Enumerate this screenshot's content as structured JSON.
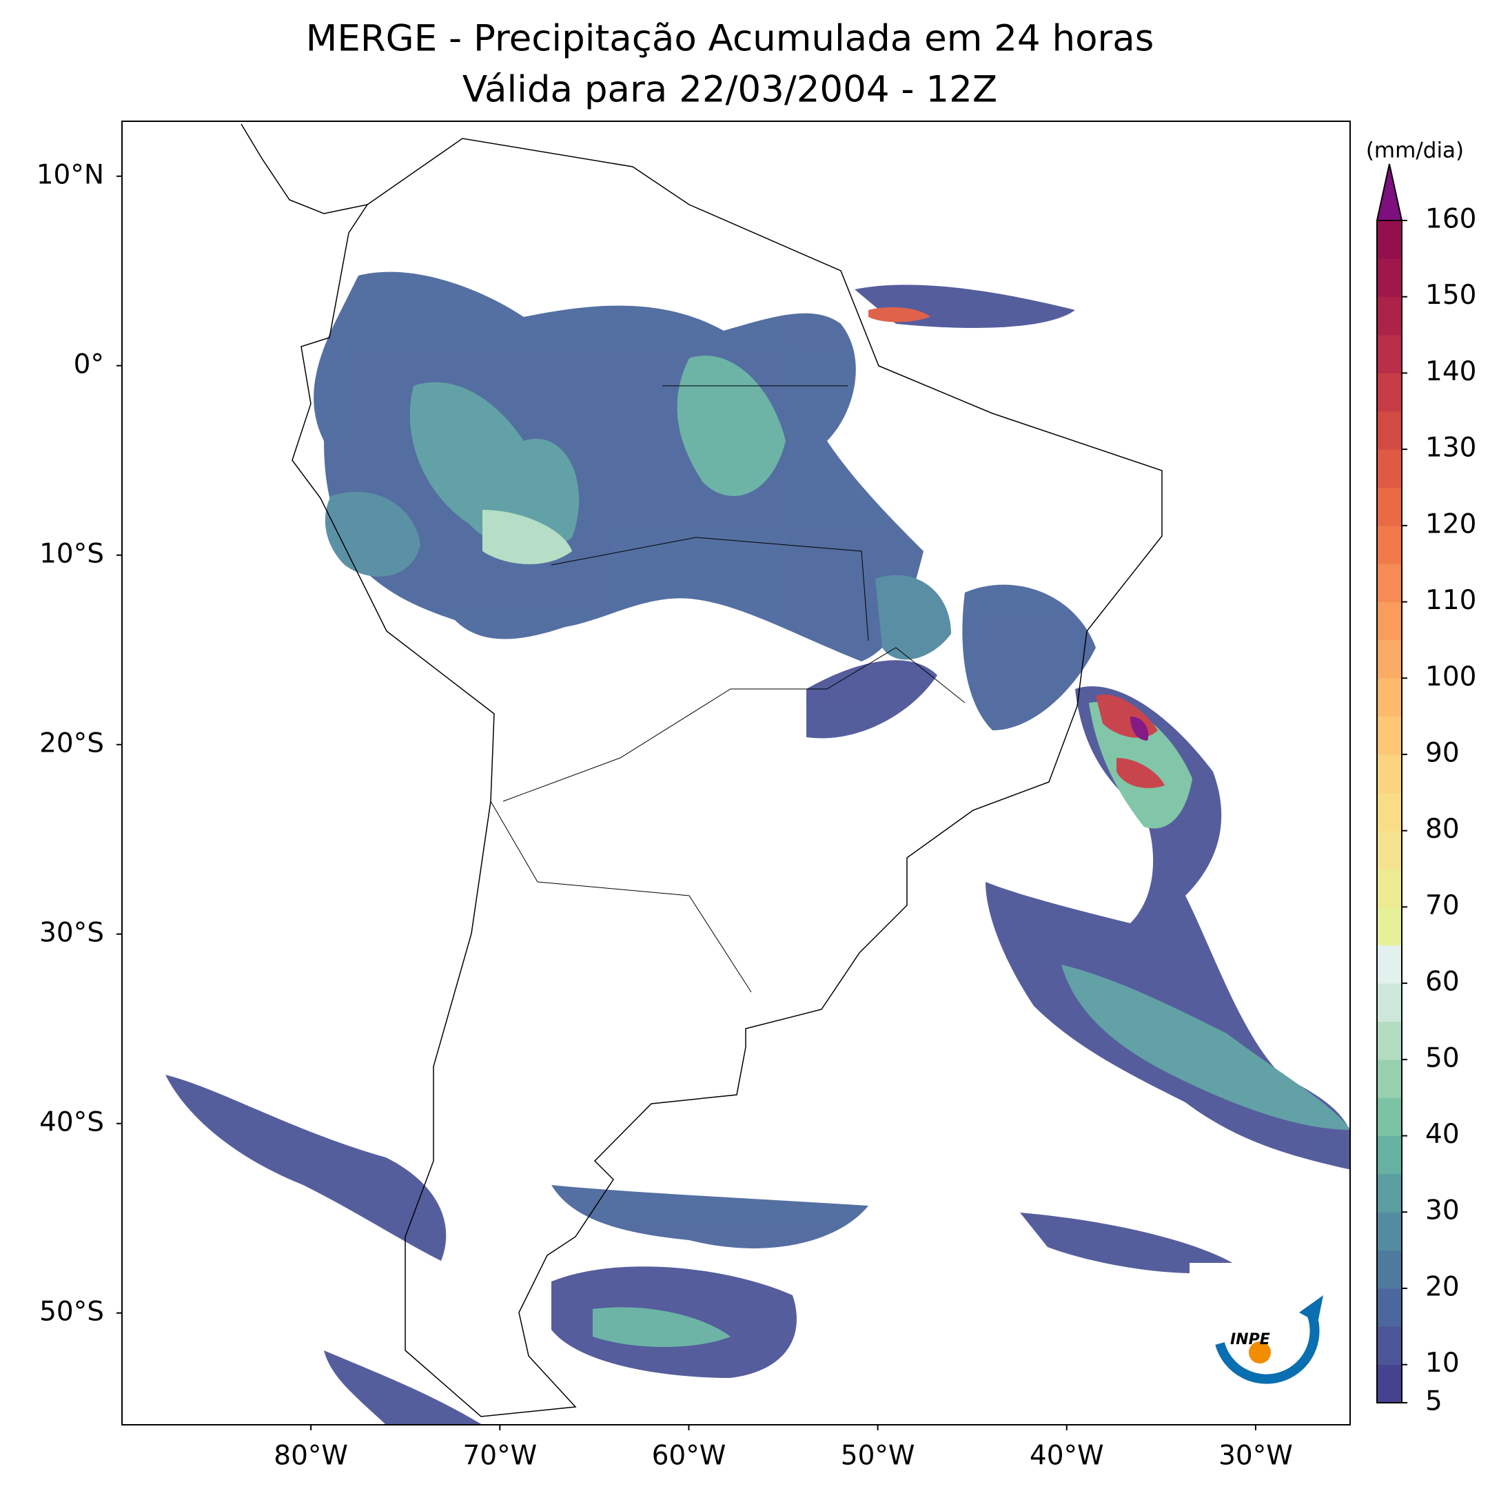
{
  "header": {
    "title": "MERGE - Precipitação Acumulada em 24 horas",
    "subtitle": "Válida para 22/03/2004 - 12Z"
  },
  "map": {
    "lon_range": [
      -90,
      -25
    ],
    "lat_range": [
      -55.9,
      12.9
    ],
    "lat_ticks": [
      {
        "value": 10,
        "label": "10°N"
      },
      {
        "value": 0,
        "label": "0°"
      },
      {
        "value": -10,
        "label": "10°S"
      },
      {
        "value": -20,
        "label": "20°S"
      },
      {
        "value": -30,
        "label": "30°S"
      },
      {
        "value": -40,
        "label": "40°S"
      },
      {
        "value": -50,
        "label": "50°S"
      }
    ],
    "lon_ticks": [
      {
        "value": -80,
        "label": "80°W"
      },
      {
        "value": -70,
        "label": "70°W"
      },
      {
        "value": -60,
        "label": "60°W"
      },
      {
        "value": -50,
        "label": "50°W"
      },
      {
        "value": -40,
        "label": "40°W"
      },
      {
        "value": -30,
        "label": "30°W"
      }
    ]
  },
  "colorbar": {
    "label": "(mm/dia)",
    "levels": [
      5,
      10,
      15,
      20,
      25,
      30,
      35,
      40,
      45,
      50,
      55,
      60,
      65,
      70,
      75,
      80,
      85,
      90,
      95,
      100,
      105,
      110,
      115,
      120,
      125,
      130,
      135,
      140,
      145,
      150,
      155,
      160
    ],
    "ticks": [
      5,
      10,
      20,
      30,
      40,
      50,
      60,
      70,
      80,
      90,
      100,
      110,
      120,
      130,
      140,
      150,
      160
    ],
    "colors": [
      "#45438f",
      "#4c5598",
      "#4b679d",
      "#4e7aa0",
      "#538ca1",
      "#5a9ea2",
      "#66b1a2",
      "#7bc3a4",
      "#98d0b0",
      "#b3dcc3",
      "#cde8da",
      "#e2f1ee",
      "#e6f098",
      "#eeea92",
      "#f4e38c",
      "#f9dc86",
      "#fcd37f",
      "#fdc776",
      "#fdba6d",
      "#fcab65",
      "#fa9c5c",
      "#f68b53",
      "#f17a4b",
      "#e96a45",
      "#df5a42",
      "#d34a43",
      "#c63c45",
      "#b92e48",
      "#ad2249",
      "#a0184b",
      "#93104c"
    ],
    "extend_color": "#7e0f7e"
  },
  "logo": {
    "text": "INPE"
  }
}
